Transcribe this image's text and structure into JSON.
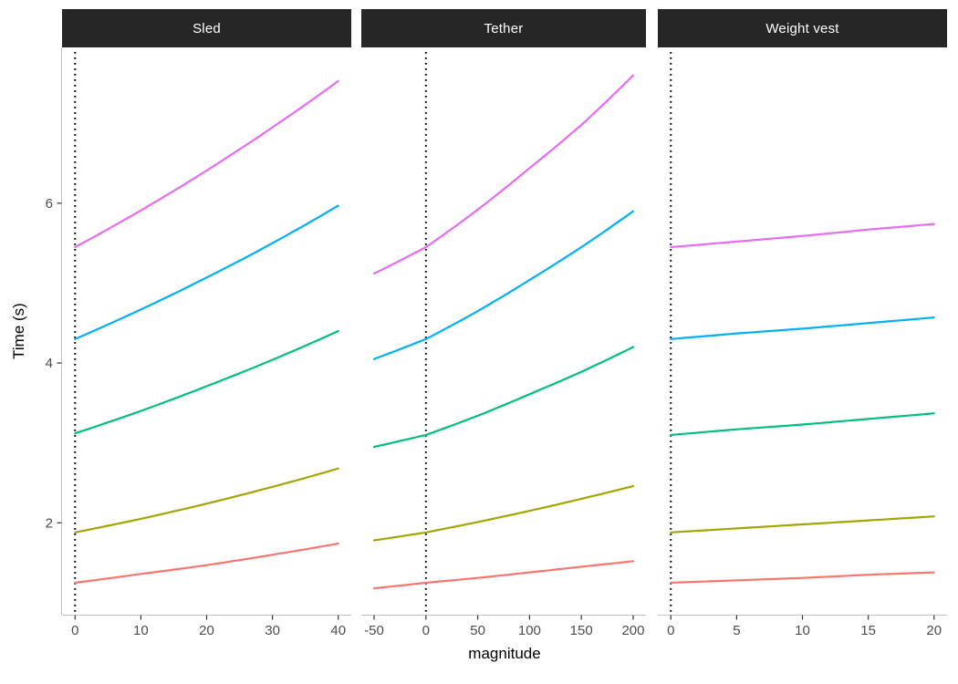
{
  "chart_data": {
    "type": "line",
    "title": "",
    "xlabel": "magnitude",
    "ylabel": "Time (s)",
    "ylim": [
      0.85,
      7.95
    ],
    "y_ticks": [
      2,
      4,
      6
    ],
    "grid": "off",
    "legend": "none",
    "style": {
      "facet_header_bg": "#262626",
      "facet_header_text": "#ffffff",
      "axis_line_color": "#c3c3c3",
      "tick_mark_color": "#333333",
      "tick_label_color": "#4d4d4d",
      "reference_line_color": "#000000",
      "background": "#ffffff"
    },
    "panels": [
      {
        "label": "Sled",
        "xlim": [
          0,
          40
        ],
        "x_ticks": [
          0,
          10,
          20,
          30,
          40
        ],
        "vline_x": 0,
        "series": [
          {
            "name": "magenta",
            "color": "#E76BF3",
            "x": [
              0,
              10,
              20,
              30,
              40
            ],
            "y": [
              5.45,
              5.91,
              6.41,
              6.95,
              7.53
            ]
          },
          {
            "name": "blue",
            "color": "#00B0F6",
            "x": [
              0,
              10,
              20,
              30,
              40
            ],
            "y": [
              4.3,
              4.67,
              5.07,
              5.5,
              5.97
            ]
          },
          {
            "name": "green",
            "color": "#00BF7D",
            "x": [
              0,
              10,
              20,
              30,
              40
            ],
            "y": [
              3.12,
              3.4,
              3.71,
              4.04,
              4.4
            ]
          },
          {
            "name": "olive",
            "color": "#A3A500",
            "x": [
              0,
              10,
              20,
              30,
              40
            ],
            "y": [
              1.88,
              2.05,
              2.24,
              2.45,
              2.68
            ]
          },
          {
            "name": "salmon",
            "color": "#F8766D",
            "x": [
              0,
              10,
              20,
              30,
              40
            ],
            "y": [
              1.25,
              1.36,
              1.47,
              1.6,
              1.74
            ]
          }
        ]
      },
      {
        "label": "Tether",
        "xlim": [
          -50,
          200
        ],
        "x_ticks": [
          -50,
          0,
          50,
          100,
          150,
          200
        ],
        "vline_x": 0,
        "series": [
          {
            "name": "magenta",
            "color": "#E76BF3",
            "x": [
              -50,
              0,
              50,
              100,
              150,
              200
            ],
            "y": [
              5.12,
              5.45,
              5.92,
              6.44,
              6.98,
              7.6
            ]
          },
          {
            "name": "blue",
            "color": "#00B0F6",
            "x": [
              -50,
              0,
              50,
              100,
              150,
              200
            ],
            "y": [
              4.05,
              4.3,
              4.65,
              5.04,
              5.45,
              5.9
            ]
          },
          {
            "name": "green",
            "color": "#00BF7D",
            "x": [
              -50,
              0,
              50,
              100,
              150,
              200
            ],
            "y": [
              2.95,
              3.1,
              3.34,
              3.61,
              3.89,
              4.2
            ]
          },
          {
            "name": "olive",
            "color": "#A3A500",
            "x": [
              -50,
              0,
              50,
              100,
              150,
              200
            ],
            "y": [
              1.78,
              1.88,
              2.01,
              2.15,
              2.3,
              2.46
            ]
          },
          {
            "name": "salmon",
            "color": "#F8766D",
            "x": [
              -50,
              0,
              50,
              100,
              150,
              200
            ],
            "y": [
              1.18,
              1.25,
              1.31,
              1.38,
              1.45,
              1.52
            ]
          }
        ]
      },
      {
        "label": "Weight vest",
        "xlim": [
          0,
          20
        ],
        "x_ticks": [
          0,
          5,
          10,
          15,
          20
        ],
        "vline_x": 0,
        "series": [
          {
            "name": "magenta",
            "color": "#E76BF3",
            "x": [
              0,
              5,
              10,
              15,
              20
            ],
            "y": [
              5.45,
              5.52,
              5.59,
              5.67,
              5.74
            ]
          },
          {
            "name": "blue",
            "color": "#00B0F6",
            "x": [
              0,
              5,
              10,
              15,
              20
            ],
            "y": [
              4.3,
              4.37,
              4.43,
              4.5,
              4.57
            ]
          },
          {
            "name": "green",
            "color": "#00BF7D",
            "x": [
              0,
              5,
              10,
              15,
              20
            ],
            "y": [
              3.1,
              3.17,
              3.23,
              3.3,
              3.37
            ]
          },
          {
            "name": "olive",
            "color": "#A3A500",
            "x": [
              0,
              5,
              10,
              15,
              20
            ],
            "y": [
              1.88,
              1.93,
              1.98,
              2.03,
              2.08
            ]
          },
          {
            "name": "salmon",
            "color": "#F8766D",
            "x": [
              0,
              5,
              10,
              15,
              20
            ],
            "y": [
              1.25,
              1.28,
              1.31,
              1.35,
              1.38
            ]
          }
        ]
      }
    ]
  }
}
